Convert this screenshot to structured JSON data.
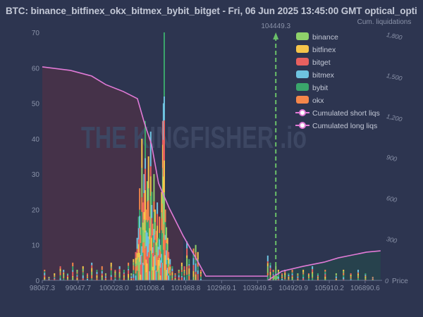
{
  "title": "BTC: binance_bitfinex_okx_bitmex_bybit_bitget - Fri, 06 Jun 2025 13:45:00 GMT optical_opti",
  "watermark": "THE KINGFISHER .io",
  "chart_data": {
    "type": "bar",
    "xlabel": "Price",
    "ylabel_right": "Cum. liquidations",
    "xlim": [
      98067.3,
      107355
    ],
    "ylim": [
      0,
      70
    ],
    "ylim_right": [
      0,
      1820
    ],
    "x_ticks": [
      "98067.3",
      "99047.7",
      "100028.0",
      "101008.4",
      "101988.8",
      "102969.1",
      "103949.5",
      "104929.9",
      "105910.2",
      "106890.6"
    ],
    "y_ticks": [
      "0",
      "10",
      "20",
      "30",
      "40",
      "50",
      "60",
      "70"
    ],
    "y_right_ticks": [
      "0",
      "300",
      "600",
      "900",
      "1,200",
      "1,500",
      "1,800"
    ],
    "current_price": {
      "label": "104449.3",
      "value": 104449.3,
      "color": "#6abf69"
    },
    "legend": [
      {
        "name": "binance",
        "color": "#8fd16a"
      },
      {
        "name": "bitfinex",
        "color": "#f5c54a"
      },
      {
        "name": "bitget",
        "color": "#e8605f"
      },
      {
        "name": "bitmex",
        "color": "#6ec3e0"
      },
      {
        "name": "bybit",
        "color": "#3aa56b"
      },
      {
        "name": "okx",
        "color": "#f5874a"
      },
      {
        "name": "Cumulated short liqs",
        "color": "#e07ad6"
      },
      {
        "name": "Cumulated long liqs",
        "color": "#e07ad6"
      }
    ],
    "bars": {
      "price": [
        98130,
        98250,
        98400,
        98560,
        98650,
        98760,
        98900,
        99020,
        99180,
        99300,
        99420,
        99560,
        99700,
        99800,
        99950,
        100060,
        100180,
        100300,
        100420,
        100500,
        100560,
        100620,
        100660,
        100700,
        100730,
        100760,
        100790,
        100820,
        100850,
        100880,
        100910,
        100940,
        100970,
        101000,
        101030,
        101060,
        101090,
        101120,
        101150,
        101180,
        101210,
        101240,
        101270,
        101300,
        101330,
        101360,
        101380,
        101400,
        101430,
        101460,
        101490,
        101520,
        101560,
        101620,
        101700,
        101800,
        101880,
        101950,
        102020,
        102080,
        102200,
        102260,
        102320,
        102400,
        104230,
        104300,
        104380,
        104450,
        104520,
        104620,
        104700,
        104800,
        104900,
        105050,
        105200,
        105350,
        105450,
        105600,
        105800,
        106100,
        106300,
        106500,
        106700,
        106900,
        107100
      ],
      "total": [
        3,
        1,
        2,
        4,
        3,
        2,
        5,
        3,
        4,
        2,
        5,
        3,
        4,
        2,
        5,
        3,
        4,
        3,
        5,
        2,
        6,
        8,
        12,
        18,
        26,
        15,
        40,
        22,
        30,
        45,
        20,
        28,
        35,
        18,
        42,
        25,
        16,
        30,
        20,
        14,
        22,
        12,
        18,
        10,
        25,
        45,
        50,
        70,
        20,
        15,
        12,
        8,
        6,
        4,
        2,
        3,
        5,
        4,
        11,
        6,
        9,
        10,
        8,
        3,
        7,
        5,
        3,
        4,
        3,
        2,
        3,
        2,
        3,
        2,
        3,
        2,
        4,
        2,
        3,
        2,
        3,
        2,
        3,
        2,
        1
      ]
    },
    "cumulated_long": {
      "price": [
        98067.3,
        98838,
        99416,
        99801,
        100282,
        100667,
        100860,
        101052,
        101245,
        101534,
        101919,
        102304,
        102535,
        104231
      ],
      "value": [
        1567,
        1541,
        1500,
        1437,
        1386,
        1334,
        1153,
        998,
        713,
        532,
        326,
        145,
        31,
        31
      ]
    },
    "cumulated_short": {
      "price": [
        104231,
        104616,
        105194,
        105772,
        106157,
        106543,
        106928,
        107313
      ],
      "value": [
        0,
        67,
        103,
        134,
        165,
        186,
        207,
        217
      ]
    }
  }
}
